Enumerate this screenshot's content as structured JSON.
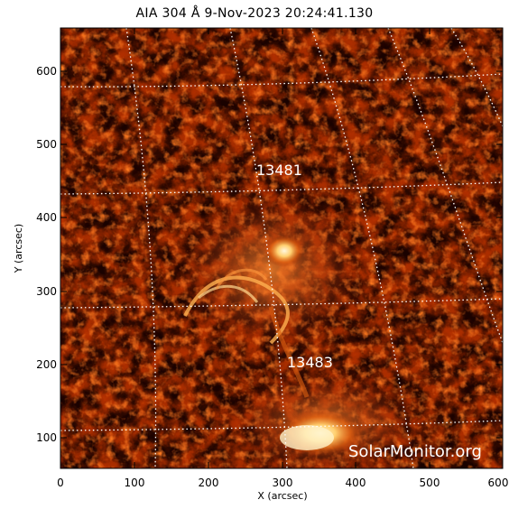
{
  "title": "AIA 304 Å   9-Nov-2023 20:24:41.130",
  "x_axis": {
    "label": "X (arcsec)",
    "ticks": [
      "0",
      "100",
      "200",
      "300",
      "400",
      "500",
      "600"
    ]
  },
  "y_axis": {
    "label": "Y (arcsec)",
    "ticks": [
      "100",
      "200",
      "300",
      "400",
      "500",
      "600"
    ]
  },
  "active_regions": [
    {
      "number": "13481",
      "x": 270,
      "y": 460
    },
    {
      "number": "13483",
      "x": 310,
      "y": 200
    }
  ],
  "credit": "SolarMonitor.org",
  "colors": {
    "background_frame": "#ffffff",
    "solar_dark": "#180000",
    "solar_mid": "#a02800",
    "solar_bright": "#ffd070",
    "grid": "#ffffff"
  }
}
